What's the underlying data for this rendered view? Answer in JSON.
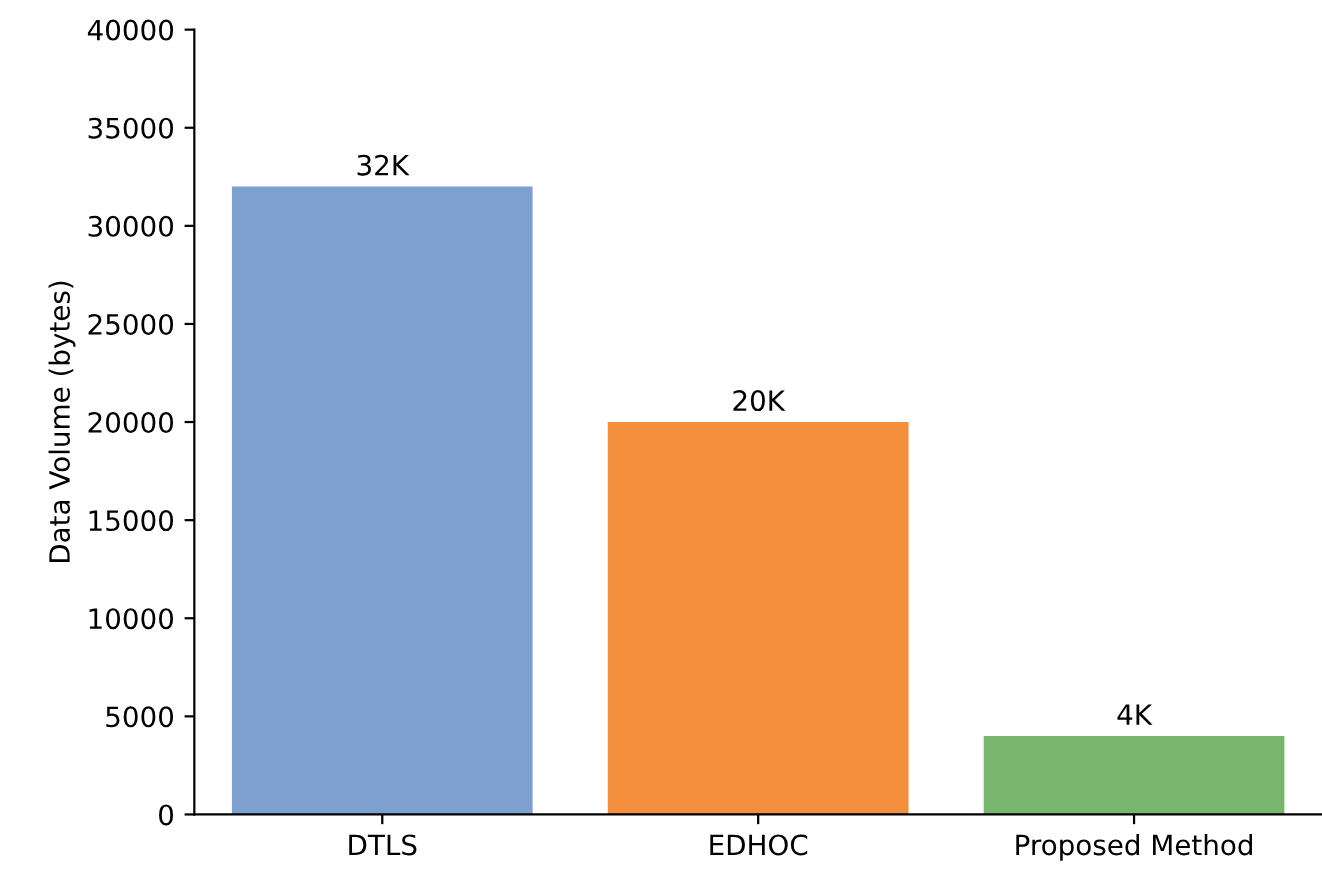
{
  "chart_data": {
    "type": "bar",
    "ylabel": "Data Volume (bytes)",
    "categories": [
      "DTLS",
      "EDHOC",
      "Proposed Method"
    ],
    "values": [
      32000,
      20000,
      4000
    ],
    "colors": [
      "#7da0d0",
      "#f28e3c",
      "#78b66e"
    ],
    "value_labels": [
      "32K",
      "20K",
      "4K"
    ],
    "ylim": [
      0,
      40000
    ],
    "yticks": [
      0,
      5000,
      10000,
      15000,
      20000,
      25000,
      30000,
      35000,
      40000
    ],
    "grid": false
  }
}
